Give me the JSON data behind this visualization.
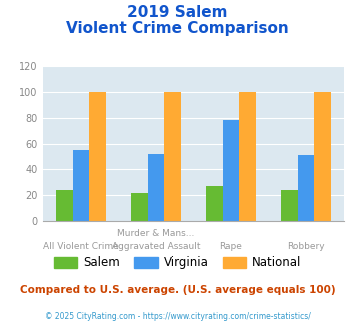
{
  "title_line1": "2019 Salem",
  "title_line2": "Violent Crime Comparison",
  "xlabel_top": [
    "",
    "Murder & Mans...",
    "",
    ""
  ],
  "xlabel_bottom": [
    "All Violent Crime",
    "Aggravated Assault",
    "Rape",
    "Robbery"
  ],
  "series": {
    "Salem": [
      24,
      22,
      27,
      24
    ],
    "Virginia": [
      55,
      52,
      78,
      51
    ],
    "National": [
      100,
      100,
      100,
      100
    ]
  },
  "colors": {
    "Salem": "#66bb33",
    "Virginia": "#4499ee",
    "National": "#ffaa33"
  },
  "ylim": [
    0,
    120
  ],
  "yticks": [
    0,
    20,
    40,
    60,
    80,
    100,
    120
  ],
  "plot_bg": "#dce8f0",
  "title_color": "#1155cc",
  "footer_text": "Compared to U.S. average. (U.S. average equals 100)",
  "footer_color": "#cc4400",
  "credit_text": "© 2025 CityRating.com - https://www.cityrating.com/crime-statistics/",
  "credit_color": "#3399cc",
  "bar_width": 0.22
}
